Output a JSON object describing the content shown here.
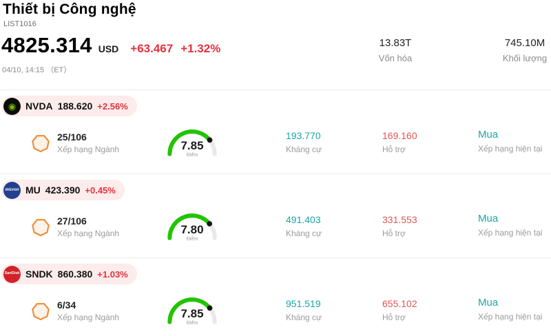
{
  "colors": {
    "red": "#e8303a",
    "red_soft": "#e05555",
    "teal": "#1aa6a6",
    "green": "#22c400",
    "pill_bg": "#fdecec",
    "divider": "#ececec",
    "gauge_rest": "#e9e9e9",
    "pentagon": "#ef8e3c",
    "nvda_green": "#76b900",
    "mu_blue": "#23408f",
    "sndk_red": "#d3232a"
  },
  "header": {
    "title": "Thiết bị Công nghệ",
    "list_id": "LIST1016",
    "price": "4825.314",
    "currency": "USD",
    "change": "+63.467",
    "change_pct": "+1.32%",
    "datetime": "04/10, 14:15 （ET）",
    "market_cap_value": "13.83T",
    "market_cap_label": "Vốn hóa",
    "volume_value": "745.10M",
    "volume_label": "Khối lượng"
  },
  "labels": {
    "rank": "Xếp hạng Ngành",
    "score": "Điểm",
    "resistance": "Kháng cự",
    "support": "Hỗ trợ",
    "current_rating": "Xếp hạng hiện tại"
  },
  "stocks": [
    {
      "ticker": "NVDA",
      "logo_text": "◉",
      "price": "188.620",
      "change_pct": "+2.56%",
      "rank": "25/106",
      "score": "7.85",
      "score_value": 7.85,
      "resistance": "193.770",
      "support": "169.160",
      "rating": "Mua"
    },
    {
      "ticker": "MU",
      "logo_text": "micron",
      "price": "423.390",
      "change_pct": "+0.45%",
      "rank": "27/106",
      "score": "7.80",
      "score_value": 7.8,
      "resistance": "491.403",
      "support": "331.553",
      "rating": "Mua"
    },
    {
      "ticker": "SNDK",
      "logo_text": "SanDisk",
      "price": "860.380",
      "change_pct": "+1.03%",
      "rank": "6/34",
      "score": "7.85",
      "score_value": 7.85,
      "resistance": "951.519",
      "support": "655.102",
      "rating": "Mua"
    }
  ]
}
